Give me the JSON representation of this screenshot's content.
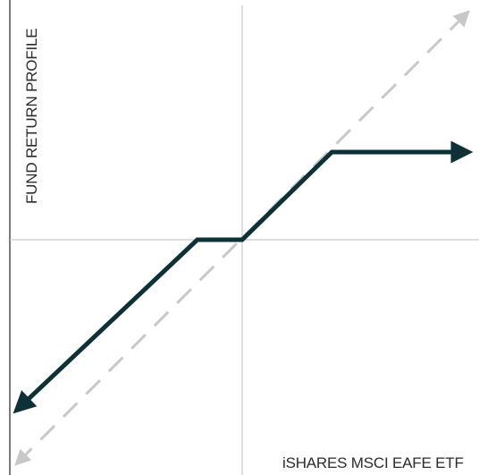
{
  "chart_data": {
    "type": "line",
    "title": "",
    "xlabel": "iSHARES MSCI EAFE ETF",
    "ylabel": "FUND RETURN PROFILE",
    "xlim": [
      -10,
      10
    ],
    "ylim": [
      -10,
      10
    ],
    "grid": false,
    "legend": "none",
    "series": [
      {
        "style": "solid",
        "color": "#0f3036",
        "arrows": "both",
        "points": [
          [
            -10,
            -7.45
          ],
          [
            -2,
            0
          ],
          [
            0,
            0
          ],
          [
            4,
            3.8
          ],
          [
            10,
            3.8
          ]
        ]
      },
      {
        "style": "dashed",
        "color": "#c8c8c8",
        "arrows": "both",
        "points": [
          [
            -10,
            -9.8
          ],
          [
            10,
            9.8
          ]
        ]
      }
    ]
  },
  "colors": {
    "axis": "#c9c9c9",
    "left_axis": "#7a7a7a",
    "text": "#2b2b2b"
  }
}
